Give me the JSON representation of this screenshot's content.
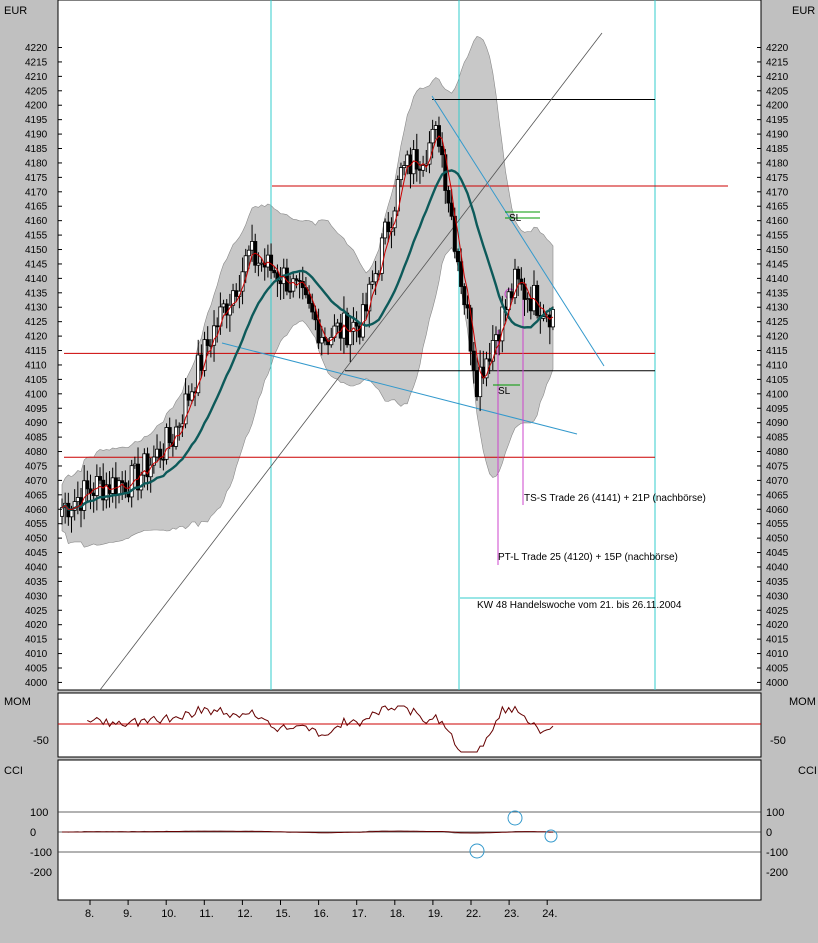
{
  "panels": {
    "price": {
      "unit_label": "EUR"
    },
    "mom": {
      "label": "MOM"
    },
    "cci": {
      "label": "CCI"
    }
  },
  "annotations": {
    "ts_s": "TS-S Trade 26 (4141) + 21P (nachbörse)",
    "pt_l": "PT-L Trade 25 (4120) + 15P (nachbörse)",
    "kw48": "KW 48 Handelswoche vom 21. bis 26.11.2004",
    "sl_upper": "SL",
    "sl_lower": "SL"
  },
  "colors": {
    "background": "#ffffff",
    "frame": "#c0c0c0",
    "candle": "#000000",
    "band_fill": "#c8c8c8",
    "ma_thick": "#0d5a5a",
    "ma_red": "#cc0000",
    "horizontal_red": "#cc0000",
    "horizontal_black": "#000000",
    "trend_blue": "#3399cc",
    "separator_cyan": "#33cccc",
    "trade_magenta": "#cc44cc",
    "sl_green": "#009900",
    "cci_grey": "#666666",
    "mom_line": "#660000"
  },
  "chart_data": [
    {
      "type": "candlestick",
      "panel": "price",
      "ylabel": "EUR",
      "ylim": [
        3998,
        4228
      ],
      "yticks": [
        4000,
        4005,
        4010,
        4015,
        4020,
        4025,
        4030,
        4035,
        4040,
        4045,
        4050,
        4055,
        4060,
        4065,
        4070,
        4075,
        4080,
        4085,
        4090,
        4095,
        4100,
        4105,
        4110,
        4115,
        4120,
        4125,
        4130,
        4135,
        4140,
        4145,
        4150,
        4155,
        4160,
        4165,
        4170,
        4175,
        4180,
        4185,
        4190,
        4195,
        4200,
        4205,
        4210,
        4215,
        4220
      ],
      "x_tick_labels": [
        "8.",
        "9.",
        "10.",
        "11.",
        "12.",
        "15.",
        "16.",
        "17.",
        "18.",
        "19.",
        "22.",
        "23.",
        "24."
      ],
      "day_closes": [
        {
          "day": "8.",
          "close": 4068
        },
        {
          "day": "9.",
          "close": 4070
        },
        {
          "day": "10.",
          "close": 4085
        },
        {
          "day": "11.",
          "close": 4120
        },
        {
          "day": "12.",
          "close": 4148
        },
        {
          "day": "15.",
          "close": 4140
        },
        {
          "day": "16.",
          "close": 4120
        },
        {
          "day": "17.",
          "close": 4125
        },
        {
          "day": "18.",
          "close": 4176
        },
        {
          "day": "19.",
          "close": 4190
        },
        {
          "day": "22.",
          "close": 4105
        },
        {
          "day": "23.",
          "close": 4138
        },
        {
          "day": "24.",
          "close": 4128
        }
      ],
      "horizontal_lines": [
        {
          "level": 4202,
          "color": "black"
        },
        {
          "level": 4172,
          "color": "red"
        },
        {
          "level": 4114,
          "color": "red"
        },
        {
          "level": 4108,
          "color": "black"
        },
        {
          "level": 4078,
          "color": "red"
        }
      ],
      "week_separators": [
        "15.",
        "22.",
        "26."
      ],
      "grid": false
    },
    {
      "type": "line",
      "panel": "mom",
      "title": "MOM",
      "yticks": [
        -50
      ]
    },
    {
      "type": "line",
      "panel": "cci",
      "title": "CCI",
      "yticks": [
        100,
        0,
        -100,
        -200
      ],
      "ylim": [
        -250,
        170
      ],
      "reference_lines": [
        100,
        0,
        -100
      ]
    }
  ]
}
